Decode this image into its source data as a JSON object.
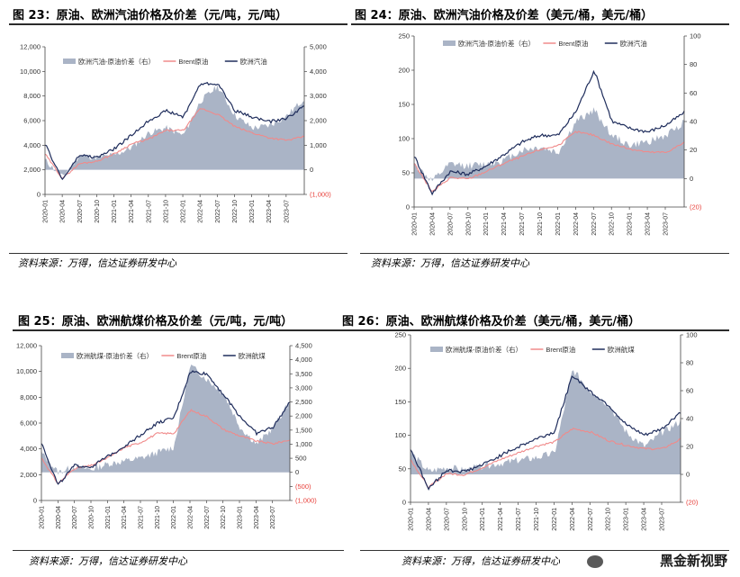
{
  "charts": [
    {
      "title": "图 23：原油、欧洲汽油价格及价差（元/吨，元/吨）",
      "source": "资料来源：万得，信达证券研发中心",
      "legend": [
        "欧洲汽油-原油价差（右）",
        "Brent原油",
        "欧洲汽油"
      ],
      "left_ticks": [
        "0",
        "2,000",
        "4,000",
        "6,000",
        "8,000",
        "10,000",
        "12,000"
      ],
      "right_ticks": [
        "(1,000)",
        "0",
        "1,000",
        "2,000",
        "3,000",
        "4,000",
        "5,000"
      ],
      "x_ticks": [
        "2020-01",
        "2020-04",
        "2020-07",
        "2020-10",
        "2021-01",
        "2021-04",
        "2021-07",
        "2021-10",
        "2022-01",
        "2022-04",
        "2022-07",
        "2022-10",
        "2023-01",
        "2023-04",
        "2023-07"
      ]
    },
    {
      "title": "图 24：原油、欧洲汽油价格及价差（美元/桶，美元/桶）",
      "source": "资料来源：万得，信达证券研发中心",
      "legend": [
        "欧洲汽油-原油价差（右）",
        "Brent原油",
        "欧洲汽油"
      ],
      "left_ticks": [
        "0",
        "50",
        "100",
        "150",
        "200",
        "250"
      ],
      "right_ticks": [
        "(20)",
        "0",
        "20",
        "40",
        "60",
        "80",
        "100"
      ],
      "x_ticks": [
        "2020-01",
        "2020-04",
        "2020-07",
        "2020-10",
        "2021-01",
        "2021-04",
        "2021-07",
        "2021-10",
        "2022-01",
        "2022-04",
        "2022-07",
        "2022-10",
        "2023-01",
        "2023-04",
        "2023-07"
      ]
    },
    {
      "title": "图 25：原油、欧洲航煤价格及价差（元/吨，元/吨）",
      "source": "资料来源：万得，信达证券研发中心",
      "legend": [
        "欧洲航煤-原油价差（右）",
        "Brent原油",
        "欧洲航煤"
      ],
      "left_ticks": [
        "0",
        "2,000",
        "4,000",
        "6,000",
        "8,000",
        "10,000",
        "12,000"
      ],
      "right_ticks": [
        "(1,000)",
        "(500)",
        "0",
        "500",
        "1,000",
        "1,500",
        "2,000",
        "2,500",
        "3,000",
        "3,500",
        "4,000",
        "4,500"
      ],
      "x_ticks": [
        "2020-01",
        "2020-04",
        "2020-07",
        "2020-10",
        "2021-01",
        "2021-04",
        "2021-07",
        "2021-10",
        "2022-01",
        "2022-04",
        "2022-07",
        "2022-10",
        "2023-01",
        "2023-04",
        "2023-07"
      ]
    },
    {
      "title": "图 26：原油、欧洲航煤价格及价差（美元/桶，美元/桶）",
      "source": "资料来源：万得，信达证券研发中心",
      "legend": [
        "欧洲航煤-原油价差（右）",
        "Brent原油",
        "欧洲航煤"
      ],
      "left_ticks": [
        "0",
        "50",
        "100",
        "150",
        "200",
        "250"
      ],
      "right_ticks": [
        "(20)",
        "0",
        "20",
        "40",
        "60",
        "80",
        "100"
      ],
      "x_ticks": [
        "2020-01",
        "2020-04",
        "2020-07",
        "2020-10",
        "2021-01",
        "2021-04",
        "2021-07",
        "2021-10",
        "2022-01",
        "2022-04",
        "2022-07",
        "2022-10",
        "2023-01",
        "2023-04",
        "2023-07"
      ]
    }
  ],
  "watermark": "黑金新视野",
  "colors": {
    "spread": "#aab4c6",
    "brent": "#f08a8a",
    "product": "#1f2d5c",
    "neg_tick": "#e8413b",
    "title_rule": "#2b2b2b"
  },
  "chart_data": [
    {
      "type": "line",
      "title": "原油、欧洲汽油价格及价差",
      "ylabel": "元/吨",
      "y2label": "元/吨",
      "ylim": [
        0,
        12000
      ],
      "y2lim": [
        -1000,
        5000
      ],
      "x": [
        "2020-01",
        "2020-04",
        "2020-07",
        "2020-10",
        "2021-01",
        "2021-04",
        "2021-07",
        "2021-10",
        "2022-01",
        "2022-04",
        "2022-07",
        "2022-10",
        "2023-01",
        "2023-04",
        "2023-07",
        "2023-09"
      ],
      "series": [
        {
          "name": "欧洲汽油-原油价差（右）",
          "axis": "right",
          "kind": "area",
          "values": [
            400,
            -300,
            600,
            500,
            600,
            900,
            1500,
            1700,
            1400,
            2800,
            3400,
            2200,
            1700,
            1800,
            2200,
            2900
          ]
        },
        {
          "name": "Brent原油",
          "axis": "left",
          "values": [
            3300,
            1300,
            2500,
            2700,
            3300,
            4100,
            4500,
            5200,
            5200,
            7000,
            6500,
            5500,
            5000,
            4600,
            4400,
            4700
          ]
        },
        {
          "name": "欧洲汽油",
          "axis": "left",
          "values": [
            4100,
            1200,
            3200,
            3000,
            3700,
            4800,
            6000,
            6800,
            6300,
            9000,
            9000,
            6800,
            6300,
            5900,
            6200,
            7200
          ]
        }
      ]
    },
    {
      "type": "line",
      "title": "原油、欧洲汽油价格及价差",
      "ylabel": "美元/桶",
      "y2label": "美元/桶",
      "ylim": [
        0,
        250
      ],
      "y2lim": [
        -20,
        100
      ],
      "x": [
        "2020-01",
        "2020-04",
        "2020-07",
        "2020-10",
        "2021-01",
        "2021-04",
        "2021-07",
        "2021-10",
        "2022-01",
        "2022-04",
        "2022-07",
        "2022-10",
        "2023-01",
        "2023-04",
        "2023-07",
        "2023-09"
      ],
      "series": [
        {
          "name": "欧洲汽油-原油价差（右）",
          "axis": "right",
          "kind": "area",
          "values": [
            10,
            -2,
            10,
            9,
            10,
            13,
            20,
            22,
            18,
            40,
            48,
            30,
            23,
            26,
            30,
            40
          ]
        },
        {
          "name": "Brent原油",
          "axis": "left",
          "values": [
            64,
            22,
            43,
            41,
            52,
            64,
            74,
            84,
            90,
            110,
            105,
            92,
            85,
            80,
            80,
            94
          ]
        },
        {
          "name": "欧洲汽油",
          "axis": "left",
          "values": [
            75,
            20,
            52,
            48,
            60,
            77,
            95,
            105,
            105,
            140,
            200,
            125,
            115,
            110,
            120,
            138
          ]
        }
      ]
    },
    {
      "type": "line",
      "title": "原油、欧洲航煤价格及价差",
      "ylabel": "元/吨",
      "y2label": "元/吨",
      "ylim": [
        0,
        12000
      ],
      "y2lim": [
        -1000,
        4500
      ],
      "x": [
        "2020-01",
        "2020-04",
        "2020-07",
        "2020-10",
        "2021-01",
        "2021-04",
        "2021-07",
        "2021-10",
        "2022-01",
        "2022-04",
        "2022-07",
        "2022-10",
        "2023-01",
        "2023-04",
        "2023-07",
        "2023-09"
      ],
      "series": [
        {
          "name": "欧洲航煤-原油价差（右）",
          "axis": "right",
          "kind": "area",
          "values": [
            700,
            0,
            200,
            100,
            300,
            400,
            500,
            700,
            900,
            3800,
            3300,
            2800,
            1600,
            1000,
            1600,
            2500
          ]
        },
        {
          "name": "Brent原油",
          "axis": "left",
          "values": [
            3300,
            1300,
            2500,
            2700,
            3300,
            4100,
            4500,
            5200,
            5200,
            7000,
            6500,
            5500,
            5000,
            4600,
            4400,
            4700
          ]
        },
        {
          "name": "欧洲航煤",
          "axis": "left",
          "values": [
            4500,
            1200,
            2700,
            2600,
            3400,
            4200,
            5100,
            6000,
            6400,
            10000,
            9800,
            8200,
            6500,
            5200,
            5700,
            7600
          ]
        }
      ]
    },
    {
      "type": "line",
      "title": "原油、欧洲航煤价格及价差",
      "ylabel": "美元/桶",
      "y2label": "美元/桶",
      "ylim": [
        0,
        250
      ],
      "y2lim": [
        -20,
        100
      ],
      "x": [
        "2020-01",
        "2020-04",
        "2020-07",
        "2020-10",
        "2021-01",
        "2021-04",
        "2021-07",
        "2021-10",
        "2022-01",
        "2022-04",
        "2022-07",
        "2022-10",
        "2023-01",
        "2023-04",
        "2023-07",
        "2023-09"
      ],
      "series": [
        {
          "name": "欧洲航煤-原油价差（右）",
          "axis": "right",
          "kind": "area",
          "values": [
            16,
            2,
            5,
            3,
            6,
            8,
            10,
            12,
            15,
            75,
            60,
            50,
            30,
            20,
            30,
            38
          ]
        },
        {
          "name": "Brent原油",
          "axis": "left",
          "values": [
            64,
            22,
            43,
            41,
            52,
            64,
            74,
            84,
            90,
            110,
            105,
            92,
            85,
            80,
            80,
            94
          ]
        },
        {
          "name": "欧洲航煤",
          "axis": "left",
          "values": [
            80,
            20,
            48,
            46,
            56,
            70,
            83,
            95,
            105,
            190,
            165,
            145,
            115,
            100,
            110,
            135
          ]
        }
      ]
    }
  ]
}
